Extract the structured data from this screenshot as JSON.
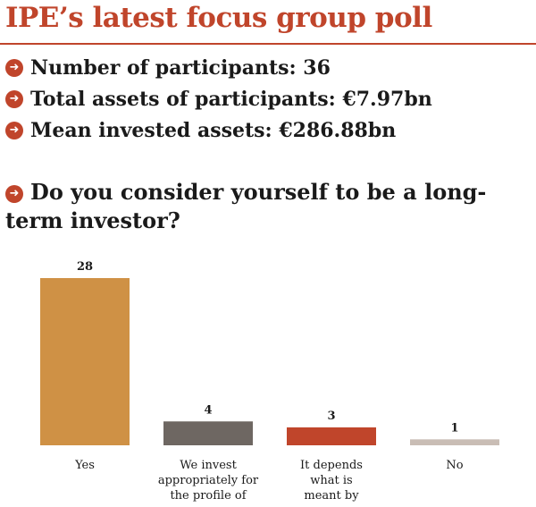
{
  "header": {
    "title": "IPE’s latest focus group poll"
  },
  "stats": [
    {
      "text": "Number of participants: 36"
    },
    {
      "text": "Total assets of participants: €7.97bn"
    },
    {
      "text": "Mean invested assets: €286.88bn"
    }
  ],
  "question": {
    "text": "Do you consider yourself to be a long-term investor?"
  },
  "bullet_icon": "arrow-circle-icon",
  "colors": {
    "accent": "#c0452b",
    "yes": "#cf9145",
    "we_invest": "#6e6762",
    "it_depends": "#c0452b",
    "no": "#c9bdb5"
  },
  "chart_data": {
    "type": "bar",
    "categories": [
      [
        "Yes"
      ],
      [
        "We invest",
        "appropriately for",
        "the profile of"
      ],
      [
        "It depends",
        "what is",
        "meant by"
      ],
      [
        "No"
      ]
    ],
    "values": [
      28,
      4,
      3,
      1
    ],
    "colors": [
      "#cf9145",
      "#6e6762",
      "#c0452b",
      "#c9bdb5"
    ],
    "title": "",
    "xlabel": "",
    "ylabel": "",
    "ylim": [
      0,
      28
    ],
    "grid": false,
    "legend": "none"
  }
}
